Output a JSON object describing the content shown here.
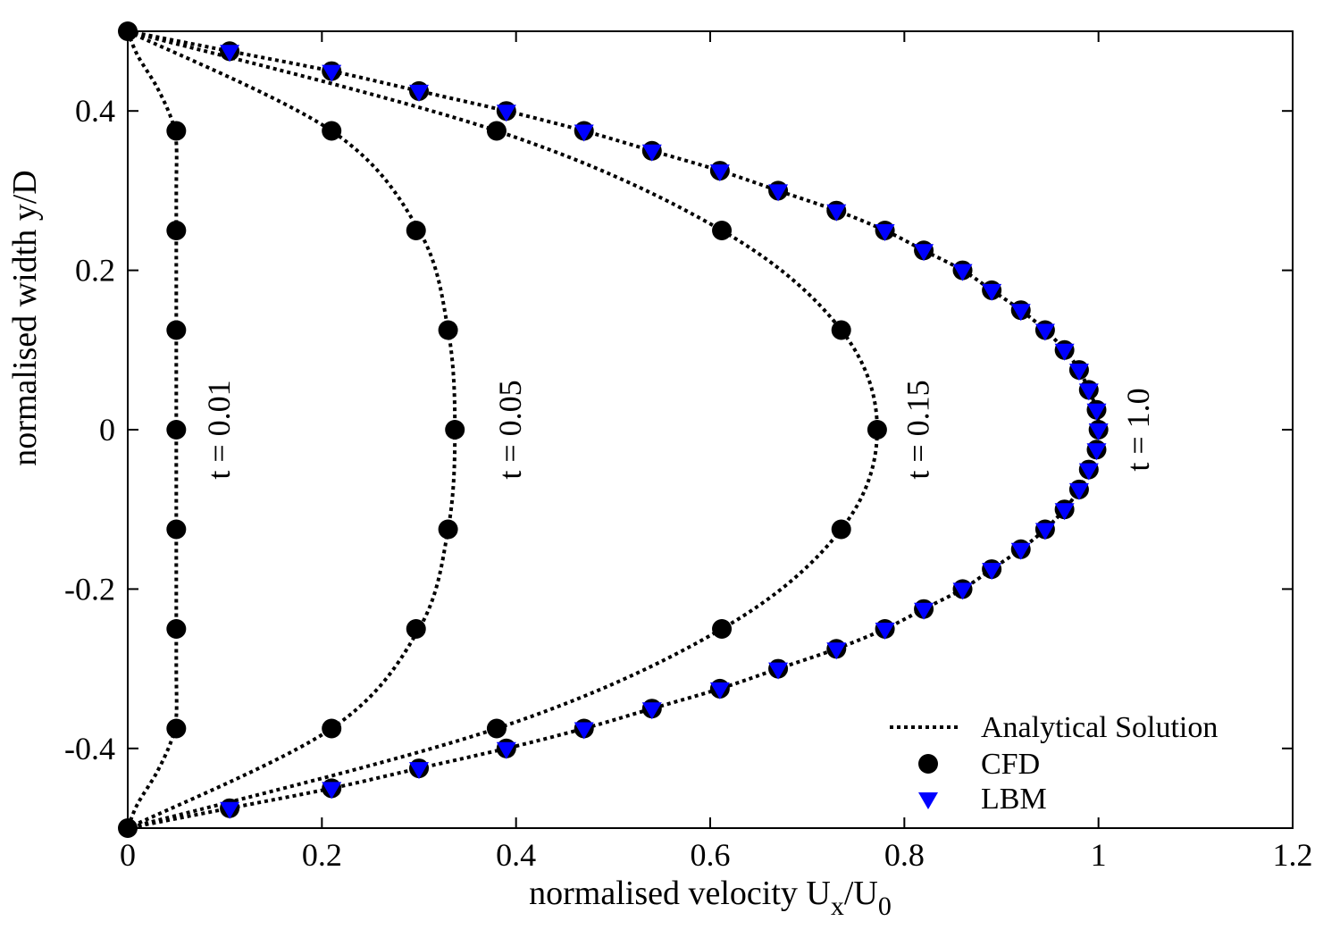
{
  "chart_data": {
    "type": "line",
    "title": "",
    "xlabel": {
      "main": "normalised velocity U",
      "sub1": "x",
      "mid": "/U",
      "sub2": "0"
    },
    "ylabel": "normalised width y/D",
    "xlim": [
      0,
      1.2
    ],
    "ylim": [
      -0.5,
      0.5
    ],
    "xticks": [
      0,
      0.2,
      0.4,
      0.6,
      0.8,
      1,
      1.2
    ],
    "xtick_labels": [
      "0",
      "0.2",
      "0.4",
      "0.6",
      "0.8",
      "1",
      "1.2"
    ],
    "yticks": [
      -0.4,
      -0.2,
      0,
      0.2,
      0.4
    ],
    "ytick_labels": [
      "-0.4",
      "-0.2",
      "0",
      "0.2",
      "0.4"
    ],
    "grid": false,
    "legend": {
      "position": "bottom-right",
      "entries": [
        "Analytical Solution",
        "CFD",
        "LBM"
      ]
    },
    "colors": {
      "analytical": "#000000",
      "cfd": "#000000",
      "lbm": "#0000ff"
    },
    "curve_labels": [
      {
        "text": "t = 0.01",
        "x": 0.105,
        "y": 0
      },
      {
        "text": "t = 0.05",
        "x": 0.405,
        "y": 0
      },
      {
        "text": "t = 0.15",
        "x": 0.825,
        "y": 0
      },
      {
        "text": "t = 1.0",
        "x": 1.052,
        "y": 0
      }
    ],
    "series": [
      {
        "name": "Analytical Solution",
        "kind": "dotted-line",
        "curves": [
          {
            "t": "0.01",
            "x": [
              0,
              0.01,
              0.03,
              0.045,
              0.05,
              0.05,
              0.05,
              0.05,
              0.05,
              0.05,
              0.05,
              0.045,
              0.03,
              0.01,
              0
            ],
            "y": [
              0.5,
              0.47,
              0.43,
              0.39,
              0.36,
              0.3,
              0.2,
              0,
              -0.2,
              -0.3,
              -0.36,
              -0.39,
              -0.43,
              -0.47,
              -0.5
            ]
          },
          {
            "t": "0.05",
            "x": [
              0,
              0.21,
              0.3,
              0.33,
              0.337,
              0.33,
              0.3,
              0.21,
              0
            ],
            "y": [
              0.5,
              0.375,
              0.25,
              0.125,
              0,
              -0.125,
              -0.25,
              -0.375,
              -0.5
            ]
          },
          {
            "t": "0.15",
            "x": [
              0,
              0.38,
              0.612,
              0.735,
              0.772,
              0.735,
              0.612,
              0.38,
              0
            ],
            "y": [
              0.5,
              0.375,
              0.25,
              0.125,
              0,
              -0.125,
              -0.25,
              -0.375,
              -0.5
            ]
          },
          {
            "t": "1.0",
            "x": [
              0,
              0.105,
              0.21,
              0.3,
              0.39,
              0.47,
              0.54,
              0.61,
              0.67,
              0.73,
              0.78,
              0.82,
              0.86,
              0.89,
              0.92,
              0.945,
              0.965,
              0.98,
              0.99,
              0.998,
              1,
              0.998,
              0.99,
              0.98,
              0.965,
              0.945,
              0.92,
              0.89,
              0.86,
              0.82,
              0.78,
              0.73,
              0.67,
              0.61,
              0.54,
              0.47,
              0.39,
              0.3,
              0.21,
              0.105,
              0
            ],
            "y": [
              0.5,
              0.475,
              0.45,
              0.425,
              0.4,
              0.375,
              0.35,
              0.325,
              0.3,
              0.275,
              0.25,
              0.225,
              0.2,
              0.175,
              0.15,
              0.125,
              0.1,
              0.075,
              0.05,
              0.025,
              0,
              -0.025,
              -0.05,
              -0.075,
              -0.1,
              -0.125,
              -0.15,
              -0.175,
              -0.2,
              -0.225,
              -0.25,
              -0.275,
              -0.3,
              -0.325,
              -0.35,
              -0.375,
              -0.4,
              -0.425,
              -0.45,
              -0.475,
              -0.5
            ]
          }
        ]
      },
      {
        "name": "CFD",
        "kind": "circle",
        "points": [
          [
            0,
            0.5
          ],
          [
            0,
            -0.5
          ],
          [
            0.05,
            0.375
          ],
          [
            0.05,
            0.25
          ],
          [
            0.05,
            0.125
          ],
          [
            0.05,
            0
          ],
          [
            0.05,
            -0.125
          ],
          [
            0.05,
            -0.25
          ],
          [
            0.05,
            -0.375
          ],
          [
            0.21,
            0.375
          ],
          [
            0.297,
            0.25
          ],
          [
            0.33,
            0.125
          ],
          [
            0.337,
            0
          ],
          [
            0.33,
            -0.125
          ],
          [
            0.297,
            -0.25
          ],
          [
            0.21,
            -0.375
          ],
          [
            0.38,
            0.375
          ],
          [
            0.612,
            0.25
          ],
          [
            0.735,
            0.125
          ],
          [
            0.772,
            0
          ],
          [
            0.735,
            -0.125
          ],
          [
            0.612,
            -0.25
          ],
          [
            0.38,
            -0.375
          ],
          [
            0.105,
            0.475
          ],
          [
            0.21,
            0.45
          ],
          [
            0.3,
            0.425
          ],
          [
            0.39,
            0.4
          ],
          [
            0.47,
            0.375
          ],
          [
            0.54,
            0.35
          ],
          [
            0.61,
            0.325
          ],
          [
            0.67,
            0.3
          ],
          [
            0.73,
            0.275
          ],
          [
            0.78,
            0.25
          ],
          [
            0.82,
            0.225
          ],
          [
            0.86,
            0.2
          ],
          [
            0.89,
            0.175
          ],
          [
            0.92,
            0.15
          ],
          [
            0.945,
            0.125
          ],
          [
            0.965,
            0.1
          ],
          [
            0.98,
            0.075
          ],
          [
            0.99,
            0.05
          ],
          [
            0.998,
            0.025
          ],
          [
            1,
            0
          ],
          [
            0.998,
            -0.025
          ],
          [
            0.99,
            -0.05
          ],
          [
            0.98,
            -0.075
          ],
          [
            0.965,
            -0.1
          ],
          [
            0.945,
            -0.125
          ],
          [
            0.92,
            -0.15
          ],
          [
            0.89,
            -0.175
          ],
          [
            0.86,
            -0.2
          ],
          [
            0.82,
            -0.225
          ],
          [
            0.78,
            -0.25
          ],
          [
            0.73,
            -0.275
          ],
          [
            0.67,
            -0.3
          ],
          [
            0.61,
            -0.325
          ],
          [
            0.54,
            -0.35
          ],
          [
            0.47,
            -0.375
          ],
          [
            0.39,
            -0.4
          ],
          [
            0.3,
            -0.425
          ],
          [
            0.21,
            -0.45
          ],
          [
            0.105,
            -0.475
          ]
        ]
      },
      {
        "name": "LBM",
        "kind": "triangle-down",
        "points": [
          [
            0.105,
            0.475
          ],
          [
            0.21,
            0.45
          ],
          [
            0.3,
            0.425
          ],
          [
            0.39,
            0.4
          ],
          [
            0.47,
            0.375
          ],
          [
            0.54,
            0.35
          ],
          [
            0.61,
            0.325
          ],
          [
            0.67,
            0.3
          ],
          [
            0.73,
            0.275
          ],
          [
            0.78,
            0.25
          ],
          [
            0.82,
            0.225
          ],
          [
            0.86,
            0.2
          ],
          [
            0.89,
            0.175
          ],
          [
            0.92,
            0.15
          ],
          [
            0.945,
            0.125
          ],
          [
            0.965,
            0.1
          ],
          [
            0.98,
            0.075
          ],
          [
            0.99,
            0.05
          ],
          [
            0.998,
            0.025
          ],
          [
            1,
            0
          ],
          [
            0.998,
            -0.025
          ],
          [
            0.99,
            -0.05
          ],
          [
            0.98,
            -0.075
          ],
          [
            0.965,
            -0.1
          ],
          [
            0.945,
            -0.125
          ],
          [
            0.92,
            -0.15
          ],
          [
            0.89,
            -0.175
          ],
          [
            0.86,
            -0.2
          ],
          [
            0.82,
            -0.225
          ],
          [
            0.78,
            -0.25
          ],
          [
            0.73,
            -0.275
          ],
          [
            0.67,
            -0.3
          ],
          [
            0.61,
            -0.325
          ],
          [
            0.54,
            -0.35
          ],
          [
            0.47,
            -0.375
          ],
          [
            0.39,
            -0.4
          ],
          [
            0.3,
            -0.425
          ],
          [
            0.21,
            -0.45
          ],
          [
            0.105,
            -0.475
          ]
        ]
      }
    ]
  }
}
